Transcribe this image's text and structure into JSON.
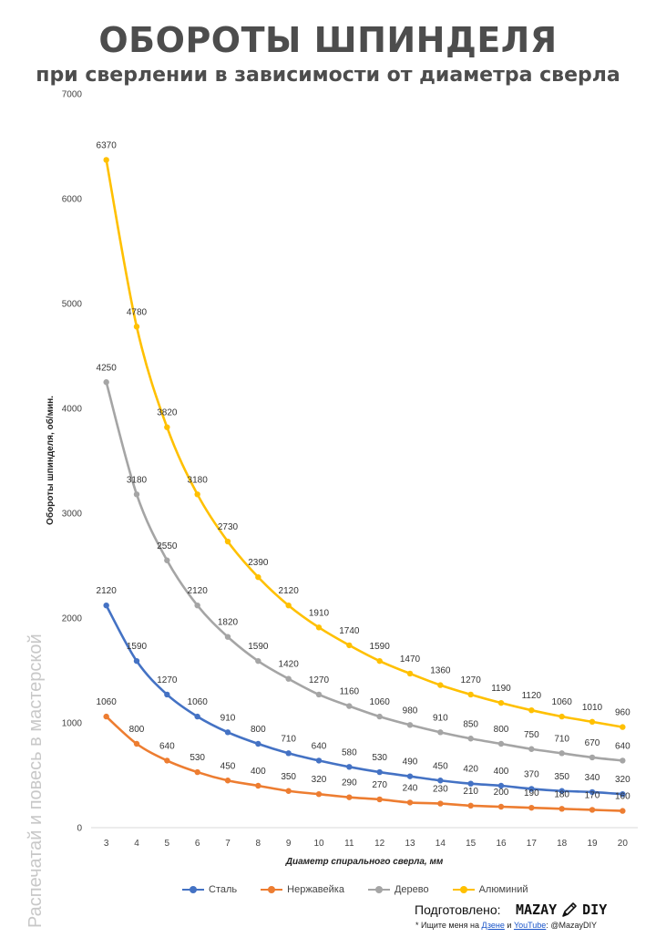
{
  "header": {
    "title": "ОБОРОТЫ ШПИНДЕЛЯ",
    "subtitle": "при сверлении в зависимости от диаметра сверла"
  },
  "watermark": "Распечатай и повесь в мастерской",
  "chart_data": {
    "type": "line",
    "xlabel": "Диаметр спирального сверла, мм",
    "ylabel": "Обороты шпинделя, об/мин.",
    "ylim": [
      0,
      7000
    ],
    "yticks": [
      0,
      1000,
      2000,
      3000,
      4000,
      5000,
      6000,
      7000
    ],
    "grid": false,
    "legend_position": "bottom",
    "x": [
      3,
      4,
      5,
      6,
      7,
      8,
      9,
      10,
      11,
      12,
      13,
      14,
      15,
      16,
      17,
      18,
      19,
      20
    ],
    "series": [
      {
        "name": "Сталь",
        "color": "#4472c4",
        "values": [
          2120,
          1590,
          1270,
          1060,
          910,
          800,
          710,
          640,
          580,
          530,
          490,
          450,
          420,
          400,
          370,
          350,
          340,
          320
        ],
        "labels": [
          "2120",
          "1590",
          "1270",
          "1060",
          "910",
          "800",
          "710",
          "640",
          "580",
          "530",
          "490",
          "450",
          "420",
          "400",
          "370",
          "350",
          "340",
          "320"
        ]
      },
      {
        "name": "Нержавейка",
        "color": "#ed7d31",
        "values": [
          1060,
          800,
          640,
          530,
          450,
          400,
          350,
          320,
          290,
          270,
          240,
          230,
          210,
          200,
          190,
          180,
          170,
          160
        ],
        "labels": [
          "1060",
          "800",
          "640",
          "530",
          "450",
          "400",
          "350",
          "320",
          "290",
          "270",
          "240",
          "230",
          "210",
          "200",
          "190",
          "180",
          "170",
          "160"
        ]
      },
      {
        "name": "Дерево",
        "color": "#a5a5a5",
        "values": [
          4250,
          3180,
          2550,
          2120,
          1820,
          1590,
          1420,
          1270,
          1160,
          1060,
          980,
          910,
          850,
          800,
          750,
          710,
          670,
          640
        ],
        "labels": [
          "4250",
          "3180",
          "2550",
          "2120",
          "1820",
          "1590",
          "1420",
          "1270",
          "1160",
          "1060",
          "980",
          "910",
          "850",
          "800",
          "750",
          "710",
          "670",
          "640"
        ]
      },
      {
        "name": "Алюминий",
        "color": "#ffc000",
        "values": [
          6370,
          4780,
          3820,
          3180,
          2730,
          2390,
          2120,
          1910,
          1740,
          1590,
          1470,
          1360,
          1270,
          1190,
          1120,
          1060,
          1010,
          960
        ],
        "labels": [
          "6370",
          "4780",
          "3820",
          "3180",
          "2730",
          "2390",
          "2120",
          "1910",
          "1740",
          "1590",
          "1470",
          "1360",
          "1270",
          "1190",
          "1120",
          "1060",
          "1010",
          "960"
        ]
      }
    ]
  },
  "footer": {
    "prepared_label": "Подготовлено:",
    "logo_text_left": "MAZAY",
    "logo_text_right": "DIY",
    "logo_icon": "pencil-icon",
    "footnote_prefix": "* Ищите меня на",
    "link_dzen": "Дзене",
    "footnote_and": "и",
    "link_youtube": "YouTube",
    "footnote_suffix": ": @MazayDIY"
  }
}
